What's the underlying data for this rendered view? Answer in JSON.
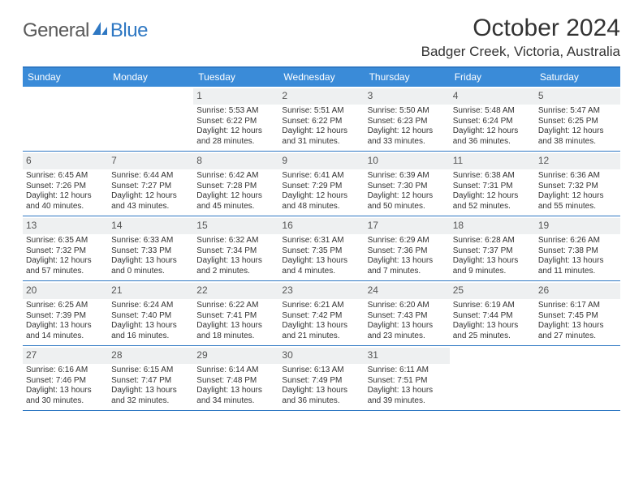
{
  "logo": {
    "text1": "General",
    "text2": "Blue"
  },
  "title": "October 2024",
  "location": "Badger Creek, Victoria, Australia",
  "colors": {
    "header_bg": "#3a8bd8",
    "header_rule": "#2f78c3",
    "daynum_bg": "#eef0f1",
    "logo_gray": "#5a5a5a",
    "logo_blue": "#2f78c3",
    "text": "#333333"
  },
  "day_names": [
    "Sunday",
    "Monday",
    "Tuesday",
    "Wednesday",
    "Thursday",
    "Friday",
    "Saturday"
  ],
  "weeks": [
    [
      {
        "empty": true
      },
      {
        "empty": true
      },
      {
        "num": "1",
        "sunrise": "5:53 AM",
        "sunset": "6:22 PM",
        "day_h": "12",
        "day_m": "28"
      },
      {
        "num": "2",
        "sunrise": "5:51 AM",
        "sunset": "6:22 PM",
        "day_h": "12",
        "day_m": "31"
      },
      {
        "num": "3",
        "sunrise": "5:50 AM",
        "sunset": "6:23 PM",
        "day_h": "12",
        "day_m": "33"
      },
      {
        "num": "4",
        "sunrise": "5:48 AM",
        "sunset": "6:24 PM",
        "day_h": "12",
        "day_m": "36"
      },
      {
        "num": "5",
        "sunrise": "5:47 AM",
        "sunset": "6:25 PM",
        "day_h": "12",
        "day_m": "38"
      }
    ],
    [
      {
        "num": "6",
        "sunrise": "6:45 AM",
        "sunset": "7:26 PM",
        "day_h": "12",
        "day_m": "40"
      },
      {
        "num": "7",
        "sunrise": "6:44 AM",
        "sunset": "7:27 PM",
        "day_h": "12",
        "day_m": "43"
      },
      {
        "num": "8",
        "sunrise": "6:42 AM",
        "sunset": "7:28 PM",
        "day_h": "12",
        "day_m": "45"
      },
      {
        "num": "9",
        "sunrise": "6:41 AM",
        "sunset": "7:29 PM",
        "day_h": "12",
        "day_m": "48"
      },
      {
        "num": "10",
        "sunrise": "6:39 AM",
        "sunset": "7:30 PM",
        "day_h": "12",
        "day_m": "50"
      },
      {
        "num": "11",
        "sunrise": "6:38 AM",
        "sunset": "7:31 PM",
        "day_h": "12",
        "day_m": "52"
      },
      {
        "num": "12",
        "sunrise": "6:36 AM",
        "sunset": "7:32 PM",
        "day_h": "12",
        "day_m": "55"
      }
    ],
    [
      {
        "num": "13",
        "sunrise": "6:35 AM",
        "sunset": "7:32 PM",
        "day_h": "12",
        "day_m": "57"
      },
      {
        "num": "14",
        "sunrise": "6:33 AM",
        "sunset": "7:33 PM",
        "day_h": "13",
        "day_m": "0"
      },
      {
        "num": "15",
        "sunrise": "6:32 AM",
        "sunset": "7:34 PM",
        "day_h": "13",
        "day_m": "2"
      },
      {
        "num": "16",
        "sunrise": "6:31 AM",
        "sunset": "7:35 PM",
        "day_h": "13",
        "day_m": "4"
      },
      {
        "num": "17",
        "sunrise": "6:29 AM",
        "sunset": "7:36 PM",
        "day_h": "13",
        "day_m": "7"
      },
      {
        "num": "18",
        "sunrise": "6:28 AM",
        "sunset": "7:37 PM",
        "day_h": "13",
        "day_m": "9"
      },
      {
        "num": "19",
        "sunrise": "6:26 AM",
        "sunset": "7:38 PM",
        "day_h": "13",
        "day_m": "11"
      }
    ],
    [
      {
        "num": "20",
        "sunrise": "6:25 AM",
        "sunset": "7:39 PM",
        "day_h": "13",
        "day_m": "14"
      },
      {
        "num": "21",
        "sunrise": "6:24 AM",
        "sunset": "7:40 PM",
        "day_h": "13",
        "day_m": "16"
      },
      {
        "num": "22",
        "sunrise": "6:22 AM",
        "sunset": "7:41 PM",
        "day_h": "13",
        "day_m": "18"
      },
      {
        "num": "23",
        "sunrise": "6:21 AM",
        "sunset": "7:42 PM",
        "day_h": "13",
        "day_m": "21"
      },
      {
        "num": "24",
        "sunrise": "6:20 AM",
        "sunset": "7:43 PM",
        "day_h": "13",
        "day_m": "23"
      },
      {
        "num": "25",
        "sunrise": "6:19 AM",
        "sunset": "7:44 PM",
        "day_h": "13",
        "day_m": "25"
      },
      {
        "num": "26",
        "sunrise": "6:17 AM",
        "sunset": "7:45 PM",
        "day_h": "13",
        "day_m": "27"
      }
    ],
    [
      {
        "num": "27",
        "sunrise": "6:16 AM",
        "sunset": "7:46 PM",
        "day_h": "13",
        "day_m": "30"
      },
      {
        "num": "28",
        "sunrise": "6:15 AM",
        "sunset": "7:47 PM",
        "day_h": "13",
        "day_m": "32"
      },
      {
        "num": "29",
        "sunrise": "6:14 AM",
        "sunset": "7:48 PM",
        "day_h": "13",
        "day_m": "34"
      },
      {
        "num": "30",
        "sunrise": "6:13 AM",
        "sunset": "7:49 PM",
        "day_h": "13",
        "day_m": "36"
      },
      {
        "num": "31",
        "sunrise": "6:11 AM",
        "sunset": "7:51 PM",
        "day_h": "13",
        "day_m": "39"
      },
      {
        "empty": true
      },
      {
        "empty": true
      }
    ]
  ]
}
